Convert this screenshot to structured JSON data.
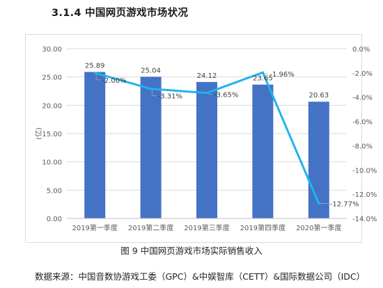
{
  "heading": "3.1.4  中国网页游戏市场状况",
  "caption": "图 9  中国网页游戏市场实际销售收入",
  "source": "数据来源：中国音数协游戏工委（GPC）&中娱智库（CETT）&国际数据公司（IDC）",
  "chart_data": {
    "type": "bar",
    "categories": [
      "2019第一季度",
      "2019第二季度",
      "2019第三季度",
      "2019第四季度",
      "2020第一季度"
    ],
    "series": [
      {
        "type": "bar",
        "axis": "left",
        "values": [
          25.89,
          25.04,
          24.12,
          23.65,
          20.63
        ],
        "labels": [
          "25.89",
          "25.04",
          "24.12",
          "23.65",
          "20.63"
        ],
        "color": "#4472c4"
      },
      {
        "type": "line",
        "axis": "right",
        "values": [
          -2.0,
          -3.31,
          -3.65,
          -1.96,
          -12.77
        ],
        "labels": [
          "-2.00%",
          "-3.31%",
          "-3.65%",
          "-1.96%",
          "-12.77%"
        ],
        "color": "#1eb4ee"
      }
    ],
    "ylabel": "(亿)",
    "ylim": [
      0,
      30
    ],
    "y_ticks": [
      "0.00",
      "5.00",
      "10.00",
      "15.00",
      "20.00",
      "25.00",
      "30.00"
    ],
    "y2lim": [
      -14,
      0
    ],
    "y2_ticks": [
      "-14.0%",
      "-12.0%",
      "-10.0%",
      "-8.0%",
      "-6.0%",
      "-4.0%",
      "-2.0%",
      "0.0%"
    ],
    "grid": true,
    "legend": "none"
  }
}
